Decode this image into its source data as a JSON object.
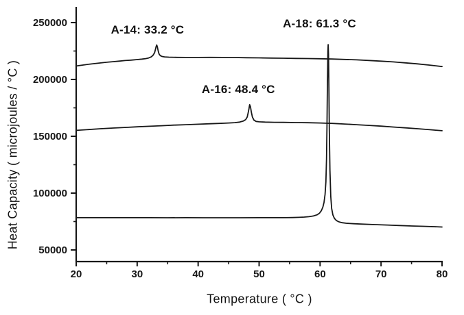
{
  "figure": {
    "background": "#ffffff",
    "ink": "#171717"
  },
  "chart_data": {
    "type": "line",
    "title": "",
    "xlabel": "Temperature ( °C )",
    "ylabel": "Heat Capacity ( microjoules / °C )",
    "xlim": [
      20,
      80
    ],
    "ylim": [
      40000,
      264000
    ],
    "grid": false,
    "legend": "none",
    "x_major_ticks": [
      20,
      30,
      40,
      50,
      60,
      70,
      80
    ],
    "x_minor_ticks": [
      25,
      35,
      45,
      55,
      65,
      75
    ],
    "y_major_ticks": [
      50000,
      100000,
      150000,
      200000,
      250000
    ],
    "y_minor_ticks": [
      75000,
      125000,
      175000,
      225000
    ],
    "annotations": [
      {
        "text": "A-14: 33.2 °C",
        "t_c": 31.7,
        "v": 243500
      },
      {
        "text": "A-16: 48.4 °C",
        "t_c": 46.6,
        "v": 191000
      },
      {
        "text": "A-18: 61.3 °C",
        "t_c": 59.9,
        "v": 248800
      }
    ],
    "series": [
      {
        "name": "A-14",
        "transition_c": 33.2,
        "points": [
          [
            20,
            211800
          ],
          [
            21,
            212600
          ],
          [
            22,
            213300
          ],
          [
            23,
            213900
          ],
          [
            24,
            214500
          ],
          [
            25,
            215100
          ],
          [
            26,
            215600
          ],
          [
            27,
            216100
          ],
          [
            28,
            216600
          ],
          [
            29,
            217000
          ],
          [
            30,
            217500
          ],
          [
            30.8,
            217900
          ],
          [
            31.4,
            218300
          ],
          [
            31.9,
            218900
          ],
          [
            32.3,
            219800
          ],
          [
            32.6,
            221200
          ],
          [
            32.85,
            223500
          ],
          [
            33.0,
            226500
          ],
          [
            33.1,
            228800
          ],
          [
            33.2,
            230300
          ],
          [
            33.32,
            228500
          ],
          [
            33.45,
            225000
          ],
          [
            33.6,
            222300
          ],
          [
            33.8,
            220900
          ],
          [
            34.1,
            220200
          ],
          [
            34.5,
            219800
          ],
          [
            35.2,
            219600
          ],
          [
            36.5,
            219400
          ],
          [
            38,
            219350
          ],
          [
            40,
            219350
          ],
          [
            42,
            219400
          ],
          [
            44,
            219350
          ],
          [
            46,
            219250
          ],
          [
            48,
            219100
          ],
          [
            50,
            218950
          ],
          [
            52,
            218800
          ],
          [
            54,
            218650
          ],
          [
            56,
            218500
          ],
          [
            58,
            218350
          ],
          [
            60,
            218200
          ],
          [
            62,
            217950
          ],
          [
            64,
            217600
          ],
          [
            66,
            217200
          ],
          [
            68,
            216700
          ],
          [
            70,
            216100
          ],
          [
            72,
            215400
          ],
          [
            74,
            214600
          ],
          [
            76,
            213700
          ],
          [
            78,
            212600
          ],
          [
            80,
            211300
          ]
        ]
      },
      {
        "name": "A-16",
        "transition_c": 48.4,
        "points": [
          [
            20,
            155200
          ],
          [
            22,
            155900
          ],
          [
            24,
            156600
          ],
          [
            26,
            157200
          ],
          [
            28,
            157800
          ],
          [
            30,
            158300
          ],
          [
            32,
            158800
          ],
          [
            34,
            159300
          ],
          [
            36,
            159800
          ],
          [
            38,
            160200
          ],
          [
            40,
            160600
          ],
          [
            42,
            161000
          ],
          [
            43.5,
            161300
          ],
          [
            45,
            161700
          ],
          [
            46,
            162000
          ],
          [
            46.8,
            162500
          ],
          [
            47.4,
            163400
          ],
          [
            47.8,
            164700
          ],
          [
            48.05,
            167000
          ],
          [
            48.2,
            170500
          ],
          [
            48.35,
            174500
          ],
          [
            48.45,
            177800
          ],
          [
            48.58,
            176000
          ],
          [
            48.72,
            171500
          ],
          [
            48.9,
            167000
          ],
          [
            49.15,
            164300
          ],
          [
            49.5,
            163100
          ],
          [
            50,
            162700
          ],
          [
            51,
            162450
          ],
          [
            52.5,
            162300
          ],
          [
            54,
            162200
          ],
          [
            56,
            162050
          ],
          [
            58,
            161900
          ],
          [
            60,
            161700
          ],
          [
            62,
            161300
          ],
          [
            64,
            160800
          ],
          [
            66,
            160200
          ],
          [
            68,
            159600
          ],
          [
            70,
            158900
          ],
          [
            72,
            158150
          ],
          [
            74,
            157400
          ],
          [
            76,
            156600
          ],
          [
            78,
            155800
          ],
          [
            80,
            154900
          ]
        ]
      },
      {
        "name": "A-18",
        "transition_c": 61.3,
        "points": [
          [
            20,
            78350
          ],
          [
            23,
            78350
          ],
          [
            26,
            78400
          ],
          [
            29,
            78350
          ],
          [
            32,
            78350
          ],
          [
            35,
            78300
          ],
          [
            38,
            78350
          ],
          [
            41,
            78300
          ],
          [
            44,
            78300
          ],
          [
            47,
            78300
          ],
          [
            50,
            78350
          ],
          [
            52,
            78350
          ],
          [
            54,
            78400
          ],
          [
            55.5,
            78500
          ],
          [
            56.5,
            78650
          ],
          [
            57.4,
            78900
          ],
          [
            58.2,
            79300
          ],
          [
            58.9,
            79900
          ],
          [
            59.5,
            80900
          ],
          [
            59.9,
            82300
          ],
          [
            60.2,
            84500
          ],
          [
            60.45,
            87500
          ],
          [
            60.65,
            92000
          ],
          [
            60.82,
            99000
          ],
          [
            60.95,
            110000
          ],
          [
            61.05,
            130000
          ],
          [
            61.13,
            160000
          ],
          [
            61.2,
            195000
          ],
          [
            61.28,
            225000
          ],
          [
            61.32,
            230600
          ],
          [
            61.38,
            222000
          ],
          [
            61.45,
            192000
          ],
          [
            61.52,
            155000
          ],
          [
            61.62,
            120000
          ],
          [
            61.75,
            97000
          ],
          [
            61.9,
            86500
          ],
          [
            62.1,
            80800
          ],
          [
            62.35,
            77800
          ],
          [
            62.7,
            75800
          ],
          [
            63.1,
            74700
          ],
          [
            63.6,
            74000
          ],
          [
            64.3,
            73500
          ],
          [
            65.5,
            73100
          ],
          [
            67,
            72700
          ],
          [
            69,
            72300
          ],
          [
            71,
            71900
          ],
          [
            73,
            71500
          ],
          [
            75,
            71100
          ],
          [
            77,
            70800
          ],
          [
            80,
            70200
          ]
        ]
      }
    ]
  }
}
